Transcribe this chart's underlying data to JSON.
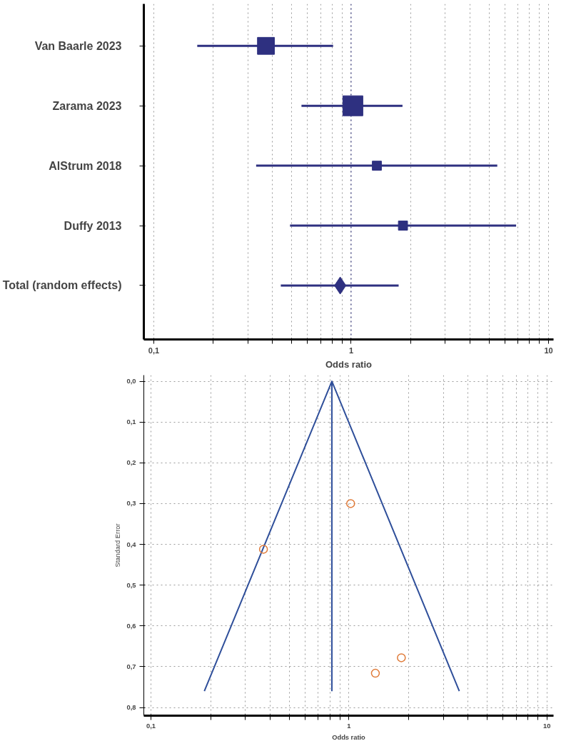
{
  "chart_data": [
    {
      "type": "bubble",
      "orientation": "horizontal",
      "xlabel": "Odds ratio",
      "log": "x",
      "grid": "x",
      "categories": [
        "Van Baarle 2023",
        "Zarama 2023",
        "AlStrum 2018",
        "Duffy 2013",
        "Total (random effects)"
      ],
      "xlim": [
        0.089,
        10.6
      ],
      "xticks": [
        {
          "value": 0.1,
          "label": "0,1"
        },
        {
          "value": 0.2,
          "label": null
        },
        {
          "value": 0.3,
          "label": null
        },
        {
          "value": 0.4,
          "label": null
        },
        {
          "value": 0.5,
          "label": null
        },
        {
          "value": 0.6,
          "label": null
        },
        {
          "value": 0.7,
          "label": null
        },
        {
          "value": 0.8,
          "label": null
        },
        {
          "value": 0.9,
          "label": null
        },
        1,
        {
          "value": 2,
          "label": null
        },
        {
          "value": 3,
          "label": null
        },
        {
          "value": 4,
          "label": null
        },
        {
          "value": 5,
          "label": null
        },
        {
          "value": 6,
          "label": null
        },
        {
          "value": 7,
          "label": null
        },
        {
          "value": 8,
          "label": null
        },
        {
          "value": 9,
          "label": null
        },
        10
      ],
      "ref_lines": [
        {
          "axis": "x",
          "value": 1,
          "color": "#2e3080",
          "line_style": "dotted"
        }
      ],
      "series": [
        {
          "type": "bubble",
          "marker": "square",
          "color": "#2e3080",
          "values": [
            0.37,
            1.02,
            1.35,
            1.83,
            null
          ],
          "sizes": [
            0.72,
            1,
            0.21,
            0.21,
            null
          ],
          "errors": [
            [
              0.166,
              0.81
            ],
            [
              0.56,
              1.82
            ],
            [
              0.33,
              5.5
            ],
            [
              0.49,
              6.85
            ],
            null
          ]
        },
        {
          "type": "scatter",
          "marker": "diamond",
          "color": "#2e3080",
          "values": [
            null,
            null,
            null,
            null,
            0.88
          ],
          "errors": [
            null,
            null,
            null,
            null,
            [
              0.44,
              1.74
            ]
          ]
        }
      ]
    },
    {
      "type": "scatter",
      "xlabel": "Odds ratio",
      "ylabel": "Standard Error",
      "log": "x",
      "grid": true,
      "xlim": [
        0.092,
        10.8
      ],
      "ylim": [
        0.82,
        -0.015
      ],
      "xticks": [
        {
          "value": 0.1,
          "label": "0,1"
        },
        {
          "value": 0.2,
          "label": null
        },
        {
          "value": 0.3,
          "label": null
        },
        {
          "value": 0.4,
          "label": null
        },
        {
          "value": 0.5,
          "label": null
        },
        {
          "value": 0.6,
          "label": null
        },
        {
          "value": 0.7,
          "label": null
        },
        {
          "value": 0.8,
          "label": null
        },
        {
          "value": 0.9,
          "label": null
        },
        1,
        {
          "value": 2,
          "label": null
        },
        {
          "value": 3,
          "label": null
        },
        {
          "value": 4,
          "label": null
        },
        {
          "value": 5,
          "label": null
        },
        {
          "value": 6,
          "label": null
        },
        {
          "value": 7,
          "label": null
        },
        {
          "value": 8,
          "label": null
        },
        {
          "value": 9,
          "label": null
        },
        10
      ],
      "yticks": [
        {
          "value": 0.0,
          "label": "0,0"
        },
        {
          "value": 0.1,
          "label": "0,1"
        },
        {
          "value": 0.2,
          "label": "0,2"
        },
        {
          "value": 0.3,
          "label": "0,3"
        },
        {
          "value": 0.4,
          "label": "0,4"
        },
        {
          "value": 0.5,
          "label": "0,5"
        },
        {
          "value": 0.6,
          "label": "0,6"
        },
        {
          "value": 0.7,
          "label": "0,7"
        },
        {
          "value": 0.8,
          "label": "0,8"
        }
      ],
      "series": [
        {
          "type": "line",
          "marker": "none",
          "color": "#2f4f9a",
          "x": [
            0.186,
            0.82,
            3.61
          ],
          "values": [
            0.76,
            0,
            0.76
          ]
        },
        {
          "type": "line",
          "marker": "none",
          "color": "#2f4f9a",
          "x": [
            0.82,
            0.82
          ],
          "values": [
            0,
            0.76
          ]
        },
        {
          "type": "scatter",
          "marker": "circle",
          "color": "#e07b39",
          "x": [
            0.37,
            1.02,
            1.36,
            1.84
          ],
          "values": [
            0.412,
            0.3,
            0.716,
            0.678
          ]
        }
      ]
    }
  ]
}
